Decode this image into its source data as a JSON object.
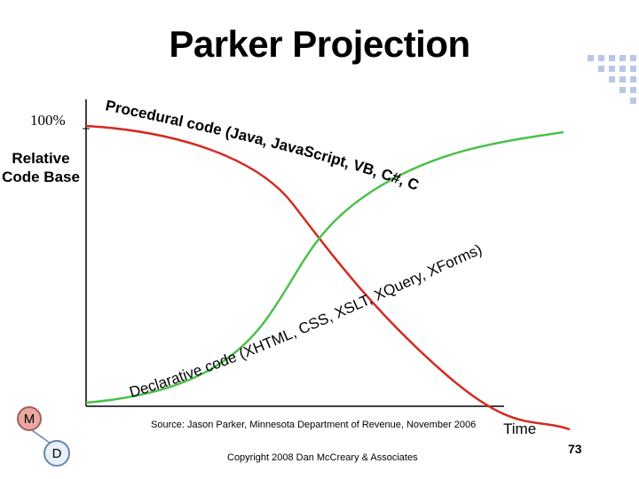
{
  "title": "Parker Projection",
  "y_axis": {
    "top_label": "100%",
    "label": "Relative Code Base"
  },
  "x_axis": {
    "label": "Time"
  },
  "curve_labels": {
    "procedural": "Procedural code (Java, JavaScript, VB, C#, C++)",
    "declarative": "Declarative code (XHTML, CSS, XSLT, XQuery, XForms)"
  },
  "source": "Source: Jason Parker, Minnesota Department of Revenue, November 2006",
  "copyright": "Copyright 2008 Dan McCreary & Associates",
  "page_number": "73",
  "bubbles": {
    "m": "M",
    "d": "D"
  },
  "colors": {
    "procedural_curve": "#d42a20",
    "declarative_curve": "#4cc04c",
    "axis": "#000000"
  }
}
